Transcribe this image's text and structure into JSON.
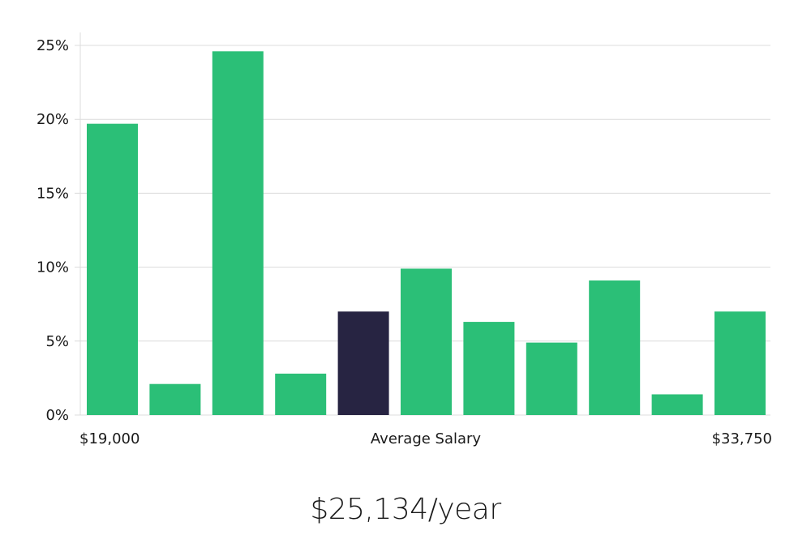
{
  "chart_data": {
    "type": "bar",
    "title": "",
    "xlabel": "Average Salary",
    "ylabel": "",
    "ylim": [
      0,
      25
    ],
    "yticks": [
      0,
      5,
      10,
      15,
      20,
      25
    ],
    "ytick_labels": [
      "0%",
      "5%",
      "10%",
      "15%",
      "20%",
      "25%"
    ],
    "x_min_label": "$19,000",
    "x_max_label": "$33,750",
    "values": [
      19.7,
      2.1,
      24.6,
      2.8,
      7.0,
      9.9,
      6.3,
      4.9,
      9.1,
      1.4,
      7.0
    ],
    "highlight_index": 4,
    "grid": true
  },
  "colors": {
    "bar": "#2bbf77",
    "highlight": "#272442"
  },
  "summary": {
    "salary_text": "$25,134/year"
  }
}
